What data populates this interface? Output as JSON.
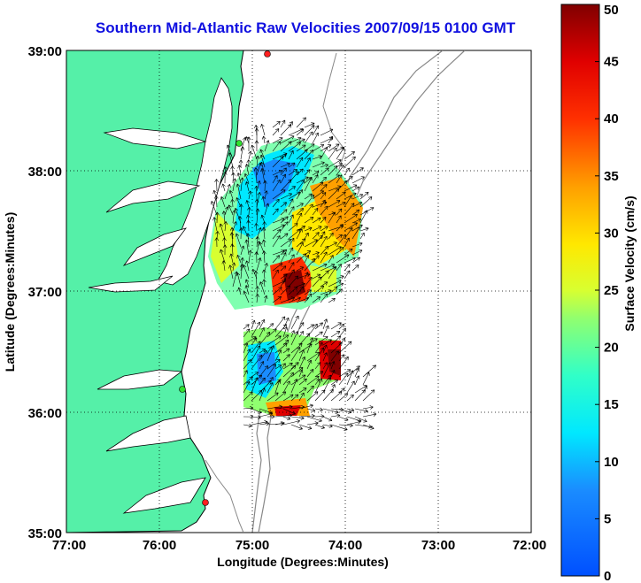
{
  "title": "Southern Mid-Atlantic Raw Velocities 2007/09/15 0100 GMT",
  "map": {
    "xlabel": "Longitude (Degrees:Minutes)",
    "ylabel": "Latitude (Degrees:Minutes)",
    "x_ticks": [
      "77:00",
      "76:00",
      "75:00",
      "74:00",
      "73:00",
      "72:00"
    ],
    "y_ticks": [
      "39:00",
      "38:00",
      "37:00",
      "36:00",
      "35:00"
    ],
    "lon_range": [
      -77,
      -72
    ],
    "lat_range": [
      35,
      39
    ],
    "colors": {
      "land": "#55f0a8",
      "ocean": "#ffffff",
      "coast": "#000000",
      "bathymetry": "#888888",
      "station": "#ff2020",
      "station_green": "#30e030"
    }
  },
  "colorbar": {
    "label": "Surface Velocity (cm/s)",
    "ticks": [
      "0",
      "5",
      "10",
      "15",
      "20",
      "25",
      "30",
      "35",
      "40",
      "45",
      "50"
    ],
    "range": [
      0,
      50
    ]
  }
}
